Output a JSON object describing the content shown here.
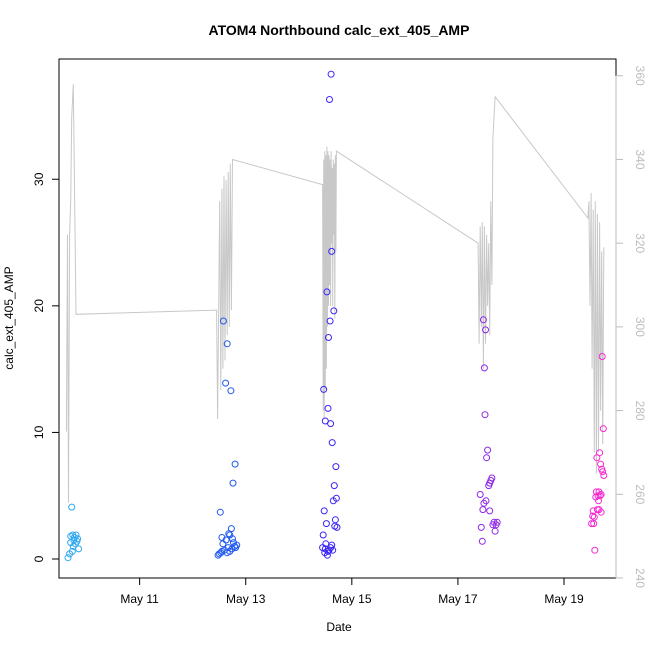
{
  "chart_data": {
    "type": "scatter",
    "title": "ATOM4 Northbound calc_ext_405_AMP",
    "xlabel": "Date",
    "ylabel": "calc_ext_405_AMP",
    "x_ticks": [
      "May 11",
      "May 13",
      "May 15",
      "May 17",
      "May 19"
    ],
    "x_tick_days": [
      11,
      13,
      15,
      17,
      19
    ],
    "xlim": [
      9.48,
      19.98
    ],
    "ylim": [
      -1.5,
      39.5
    ],
    "y_ticks": [
      0,
      10,
      20,
      30
    ],
    "y2lim": [
      240,
      364
    ],
    "y2_ticks": [
      240,
      260,
      280,
      300,
      320,
      340,
      360
    ],
    "y2_color": "#bdbdbd",
    "grid": false,
    "legend": "none",
    "color_scale": [
      "#29b6f6",
      "#1e63ff",
      "#3a22ff",
      "#8a2be2",
      "#ff2bd6"
    ],
    "scatter_groups": [
      {
        "color": "#2ea8f0",
        "points": [
          [
            9.65,
            0.1
          ],
          [
            9.68,
            0.4
          ],
          [
            9.7,
            1.8
          ],
          [
            9.72,
            4.1
          ],
          [
            9.73,
            0.6
          ],
          [
            9.74,
            1.9
          ],
          [
            9.76,
            1.5
          ],
          [
            9.77,
            1.7
          ],
          [
            9.79,
            1.2
          ],
          [
            9.8,
            1.9
          ],
          [
            9.82,
            1.4
          ],
          [
            9.83,
            1.6
          ],
          [
            9.85,
            0.8
          ],
          [
            9.7,
            1.3
          ],
          [
            9.75,
            1.0
          ]
        ]
      },
      {
        "color": "#2159f0",
        "points": [
          [
            12.48,
            0.3
          ],
          [
            12.5,
            0.4
          ],
          [
            12.52,
            3.7
          ],
          [
            12.53,
            0.5
          ],
          [
            12.55,
            0.6
          ],
          [
            12.57,
            1.2
          ],
          [
            12.58,
            18.8
          ],
          [
            12.6,
            0.7
          ],
          [
            12.62,
            13.9
          ],
          [
            12.63,
            1.5
          ],
          [
            12.65,
            17.0
          ],
          [
            12.67,
            0.9
          ],
          [
            12.68,
            2.0
          ],
          [
            12.7,
            0.6
          ],
          [
            12.72,
            13.3
          ],
          [
            12.73,
            2.4
          ],
          [
            12.74,
            0.8
          ],
          [
            12.76,
            6.0
          ],
          [
            12.77,
            1.3
          ],
          [
            12.79,
            1.0
          ],
          [
            12.8,
            7.5
          ],
          [
            12.81,
            0.9
          ],
          [
            12.83,
            1.1
          ],
          [
            12.55,
            1.7
          ],
          [
            12.65,
            0.5
          ],
          [
            12.7,
            1.9
          ],
          [
            12.75,
            1.6
          ]
        ]
      },
      {
        "color": "#3b26f5",
        "points": [
          [
            14.45,
            0.9
          ],
          [
            14.46,
            1.9
          ],
          [
            14.47,
            13.4
          ],
          [
            14.48,
            3.8
          ],
          [
            14.49,
            0.5
          ],
          [
            14.5,
            10.9
          ],
          [
            14.51,
            1.2
          ],
          [
            14.52,
            2.8
          ],
          [
            14.53,
            21.1
          ],
          [
            14.54,
            0.3
          ],
          [
            14.55,
            11.9
          ],
          [
            14.56,
            17.5
          ],
          [
            14.57,
            0.7
          ],
          [
            14.58,
            36.3
          ],
          [
            14.59,
            18.8
          ],
          [
            14.6,
            10.7
          ],
          [
            14.61,
            38.3
          ],
          [
            14.62,
            24.3
          ],
          [
            14.63,
            9.2
          ],
          [
            14.64,
            0.7
          ],
          [
            14.65,
            4.6
          ],
          [
            14.66,
            19.6
          ],
          [
            14.67,
            5.8
          ],
          [
            14.68,
            2.6
          ],
          [
            14.69,
            3.1
          ],
          [
            14.7,
            7.3
          ],
          [
            14.71,
            4.8
          ],
          [
            14.72,
            2.5
          ],
          [
            14.5,
            0.8
          ],
          [
            14.55,
            0.6
          ],
          [
            14.6,
            0.9
          ],
          [
            14.62,
            1.1
          ]
        ]
      },
      {
        "color": "#8d28e8",
        "points": [
          [
            17.42,
            5.1
          ],
          [
            17.44,
            2.5
          ],
          [
            17.46,
            1.4
          ],
          [
            17.47,
            3.9
          ],
          [
            17.48,
            18.9
          ],
          [
            17.49,
            4.4
          ],
          [
            17.5,
            15.1
          ],
          [
            17.51,
            11.4
          ],
          [
            17.52,
            18.1
          ],
          [
            17.53,
            4.6
          ],
          [
            17.54,
            8.0
          ],
          [
            17.56,
            8.6
          ],
          [
            17.58,
            5.8
          ],
          [
            17.6,
            3.8
          ],
          [
            17.62,
            6.2
          ],
          [
            17.64,
            6.4
          ],
          [
            17.66,
            2.7
          ],
          [
            17.68,
            2.9
          ],
          [
            17.7,
            2.2
          ],
          [
            17.72,
            2.7
          ],
          [
            17.74,
            2.9
          ],
          [
            17.6,
            6.0
          ]
        ]
      },
      {
        "color": "#f52ad2",
        "points": [
          [
            19.52,
            2.8
          ],
          [
            19.54,
            3.4
          ],
          [
            19.55,
            3.8
          ],
          [
            19.56,
            2.8
          ],
          [
            19.57,
            3.3
          ],
          [
            19.58,
            0.7
          ],
          [
            19.6,
            4.9
          ],
          [
            19.61,
            5.3
          ],
          [
            19.62,
            8.0
          ],
          [
            19.63,
            3.9
          ],
          [
            19.64,
            5.0
          ],
          [
            19.65,
            4.6
          ],
          [
            19.66,
            5.3
          ],
          [
            19.67,
            8.4
          ],
          [
            19.68,
            5.0
          ],
          [
            19.69,
            7.5
          ],
          [
            19.7,
            5.1
          ],
          [
            19.71,
            7.1
          ],
          [
            19.72,
            16.0
          ],
          [
            19.73,
            6.9
          ],
          [
            19.74,
            10.3
          ],
          [
            19.75,
            6.6
          ],
          [
            19.66,
            3.9
          ],
          [
            19.7,
            3.7
          ]
        ]
      }
    ],
    "line_series": {
      "axis": "right",
      "color": "#c8c8c8",
      "points": [
        [
          9.62,
          275
        ],
        [
          9.64,
          322
        ],
        [
          9.66,
          258
        ],
        [
          9.68,
          322
        ],
        [
          9.7,
          330
        ],
        [
          9.72,
          350
        ],
        [
          9.75,
          358
        ],
        [
          9.8,
          303
        ],
        [
          12.45,
          304
        ],
        [
          12.47,
          278
        ],
        [
          12.49,
          305
        ],
        [
          12.51,
          330
        ],
        [
          12.53,
          285
        ],
        [
          12.55,
          333
        ],
        [
          12.57,
          290
        ],
        [
          12.59,
          336
        ],
        [
          12.61,
          292
        ],
        [
          12.63,
          335
        ],
        [
          12.65,
          298
        ],
        [
          12.67,
          337
        ],
        [
          12.69,
          300
        ],
        [
          12.71,
          339
        ],
        [
          12.73,
          304
        ],
        [
          12.75,
          340
        ],
        [
          14.45,
          334
        ],
        [
          14.46,
          280
        ],
        [
          14.47,
          340
        ],
        [
          14.48,
          278
        ],
        [
          14.49,
          342
        ],
        [
          14.5,
          285
        ],
        [
          14.51,
          341
        ],
        [
          14.52,
          290
        ],
        [
          14.53,
          343
        ],
        [
          14.54,
          300
        ],
        [
          14.55,
          342
        ],
        [
          14.56,
          305
        ],
        [
          14.57,
          341
        ],
        [
          14.58,
          310
        ],
        [
          14.59,
          340
        ],
        [
          14.6,
          305
        ],
        [
          14.61,
          342
        ],
        [
          14.62,
          320
        ],
        [
          14.63,
          338
        ],
        [
          14.64,
          305
        ],
        [
          14.65,
          340
        ],
        [
          14.66,
          322
        ],
        [
          14.67,
          339
        ],
        [
          14.68,
          302
        ],
        [
          14.69,
          341
        ],
        [
          14.7,
          318
        ],
        [
          14.71,
          342
        ],
        [
          17.38,
          320
        ],
        [
          17.4,
          296
        ],
        [
          17.42,
          324
        ],
        [
          17.44,
          300
        ],
        [
          17.46,
          325
        ],
        [
          17.48,
          290
        ],
        [
          17.5,
          324
        ],
        [
          17.52,
          296
        ],
        [
          17.54,
          322
        ],
        [
          17.56,
          305
        ],
        [
          17.58,
          320
        ],
        [
          17.6,
          298
        ],
        [
          17.62,
          330
        ],
        [
          17.64,
          310
        ],
        [
          17.66,
          345
        ],
        [
          17.68,
          350
        ],
        [
          17.7,
          355
        ],
        [
          19.45,
          326
        ],
        [
          19.47,
          330
        ],
        [
          19.49,
          305
        ],
        [
          19.51,
          332
        ],
        [
          19.53,
          290
        ],
        [
          19.55,
          328
        ],
        [
          19.57,
          270
        ],
        [
          19.59,
          330
        ],
        [
          19.61,
          265
        ],
        [
          19.63,
          327
        ],
        [
          19.65,
          270
        ],
        [
          19.67,
          325
        ],
        [
          19.69,
          280
        ],
        [
          19.71,
          318
        ],
        [
          19.73,
          272
        ],
        [
          19.75,
          319
        ]
      ]
    }
  }
}
